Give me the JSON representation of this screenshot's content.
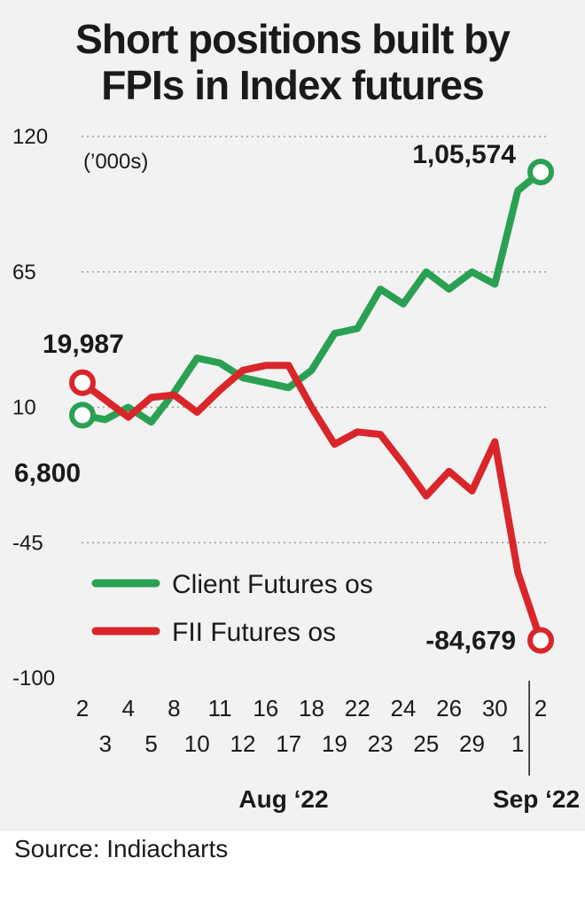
{
  "title": [
    "Short positions built by",
    "FPIs in Index futures"
  ],
  "source": "Source: Indiacharts",
  "colors": {
    "client": "#2aa152",
    "fii": "#d9262b",
    "background": "#f2f2f2"
  },
  "chart_data": {
    "type": "line",
    "title": "Short positions built by FPIs in Index futures",
    "unit_label": "(’000s)",
    "yticks": [
      120,
      65,
      10,
      -45,
      -100
    ],
    "ylim": [
      -100,
      120
    ],
    "grid": "dotted horizontal",
    "legend_position": "bottom-left",
    "x_labels_top": [
      "2",
      "4",
      "8",
      "11",
      "16",
      "18",
      "22",
      "24",
      "26",
      "30",
      "2"
    ],
    "x_labels_bottom": [
      "3",
      "5",
      "10",
      "12",
      "17",
      "19",
      "23",
      "25",
      "29",
      "1"
    ],
    "months": [
      {
        "label": "Aug ‘22",
        "index_center": 8.5
      },
      {
        "label": "Sep ‘22",
        "index_center": 20.5
      }
    ],
    "month_divider_index": 19.5,
    "series": [
      {
        "name": "Client Futures os",
        "color": "#2aa152",
        "values": [
          6.8,
          5,
          10,
          4,
          16,
          30,
          28,
          22,
          20,
          18,
          25,
          40,
          42,
          58,
          52,
          65,
          58,
          65,
          60,
          98,
          105.574
        ]
      },
      {
        "name": "FII Futures os",
        "color": "#d9262b",
        "values": [
          19.987,
          13,
          6,
          14,
          15,
          8,
          17,
          25,
          27,
          27,
          10,
          -5,
          0,
          -1,
          -13,
          -26,
          -16,
          -24,
          -4,
          -57,
          -84.679
        ]
      }
    ],
    "annotations": [
      {
        "text": "1,05,574",
        "series": 0,
        "index": 20
      },
      {
        "text": "6,800",
        "series": 0,
        "index": 0
      },
      {
        "text": "19,987",
        "series": 1,
        "index": 0
      },
      {
        "text": "-84,679",
        "series": 1,
        "index": 20
      }
    ]
  }
}
